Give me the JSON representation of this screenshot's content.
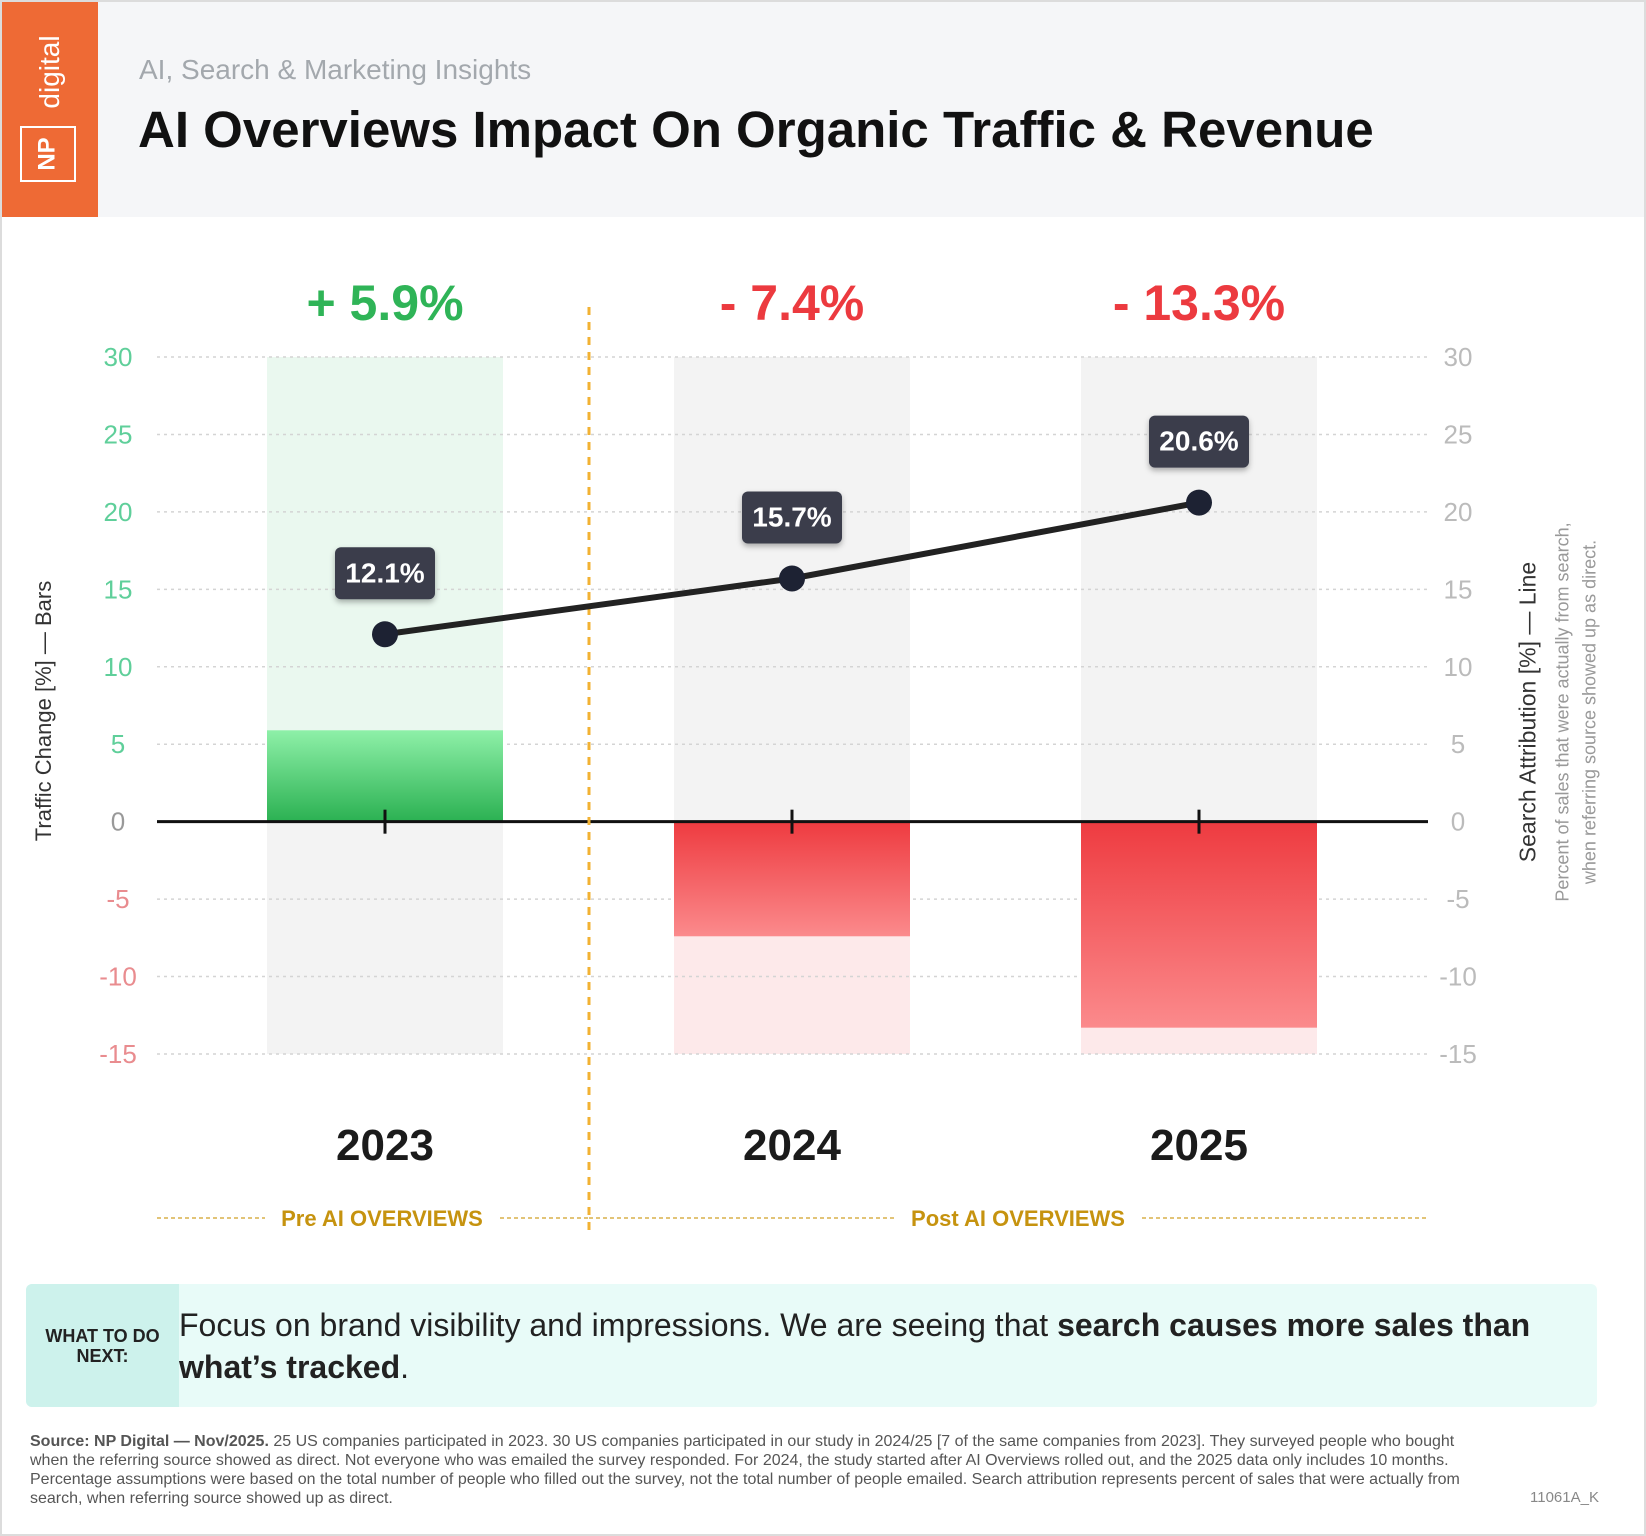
{
  "header": {
    "logo_np": "NP",
    "logo_digital": "digital",
    "subtitle": "AI, Search & Marketing Insights",
    "title": "AI Overviews Impact On Organic Traffic & Revenue"
  },
  "chart_data": {
    "type": "bar+line",
    "categories": [
      "2023",
      "2024",
      "2025"
    ],
    "bars": {
      "axis_label": "Traffic Change [%] — Bars",
      "values": [
        5.9,
        -7.4,
        -13.3
      ],
      "labels": [
        "+ 5.9%",
        "- 7.4%",
        "- 13.3%"
      ],
      "colors": {
        "positive": "#2fb457",
        "negative": "#ec3a3f"
      }
    },
    "line": {
      "axis_label": "Search Attribution [%] — Line",
      "axis_sublabel_1": "Percent of sales that were actually from search,",
      "axis_sublabel_2": "when referring source showed up as direct.",
      "values": [
        12.1,
        15.7,
        20.6
      ],
      "labels": [
        "12.1%",
        "15.7%",
        "20.6%"
      ],
      "color": "#1d2233"
    },
    "ylim": [
      -15,
      30
    ],
    "yticks": [
      30,
      25,
      20,
      15,
      10,
      5,
      0,
      -5,
      -10,
      -15
    ],
    "grid": true,
    "periods": [
      {
        "label": "Pre AI OVERVIEWS",
        "categories": [
          "2023"
        ]
      },
      {
        "label": "Post AI OVERVIEWS",
        "categories": [
          "2024",
          "2025"
        ]
      }
    ],
    "divider_color": "#f2b233"
  },
  "callout": {
    "label": "WHAT TO DO NEXT:",
    "text_plain": "Focus on brand visibility and impressions. We are seeing that ",
    "text_bold": "search causes more sales than what’s tracked",
    "text_end": "."
  },
  "footer": {
    "source_bold": "Source: NP Digital — Nov/2025.",
    "source_text": " 25 US companies participated in 2023. 30 US companies participated in our study in 2024/25 [7 of the same companies from 2023]. They surveyed people who bought when the referring source showed as direct. Not everyone who was emailed the survey responded. For 2024, the study started after AI Overviews rolled out, and the 2025 data only includes 10 months. Percentage assumptions were based on the total number of people who filled out the survey, not the total number of people emailed. Search attribution represents percent of sales that were actually from search, when referring source showed up as direct.",
    "code": "11061A_K"
  }
}
